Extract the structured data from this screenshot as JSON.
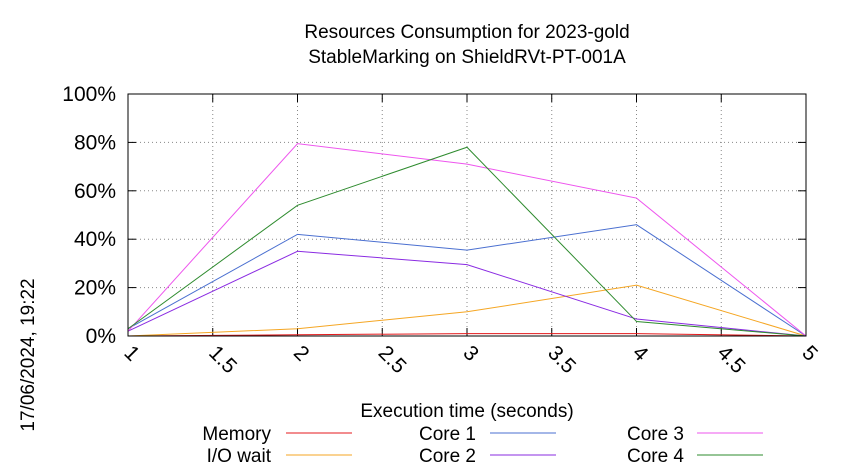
{
  "footer": {
    "timestamp": "17/06/2024, 19:22"
  },
  "chart_data": {
    "type": "line",
    "title": [
      "Resources Consumption for 2023-gold",
      "StableMarking on ShieldRVt-PT-001A"
    ],
    "xlabel": "Execution time (seconds)",
    "ylabel": "",
    "x": [
      1,
      2,
      3,
      4,
      5
    ],
    "xlim": [
      1,
      5
    ],
    "ylim": [
      0,
      100
    ],
    "x_ticks": [
      "1",
      "1.5",
      "2",
      "2.5",
      "3",
      "3.5",
      "4",
      "4.5",
      "5"
    ],
    "y_ticks": [
      "0%",
      "20%",
      "40%",
      "60%",
      "80%",
      "100%"
    ],
    "grid": true,
    "legend_position": "bottom",
    "series": [
      {
        "name": "Memory",
        "color": "#e41a1c",
        "values": [
          0,
          0.5,
          1,
          1,
          0
        ]
      },
      {
        "name": "I/O wait",
        "color": "#f5a623",
        "values": [
          0,
          3,
          10,
          21,
          0
        ]
      },
      {
        "name": "Core 1",
        "color": "#4a6fd0",
        "values": [
          3,
          42,
          35.5,
          46,
          0
        ]
      },
      {
        "name": "Core 2",
        "color": "#8a2be2",
        "values": [
          2,
          35,
          29.5,
          7,
          0
        ]
      },
      {
        "name": "Core 3",
        "color": "#ee55ee",
        "values": [
          2,
          79.5,
          71,
          57,
          0
        ]
      },
      {
        "name": "Core 4",
        "color": "#2e8b2e",
        "values": [
          3,
          54,
          78,
          6,
          0
        ]
      }
    ]
  }
}
